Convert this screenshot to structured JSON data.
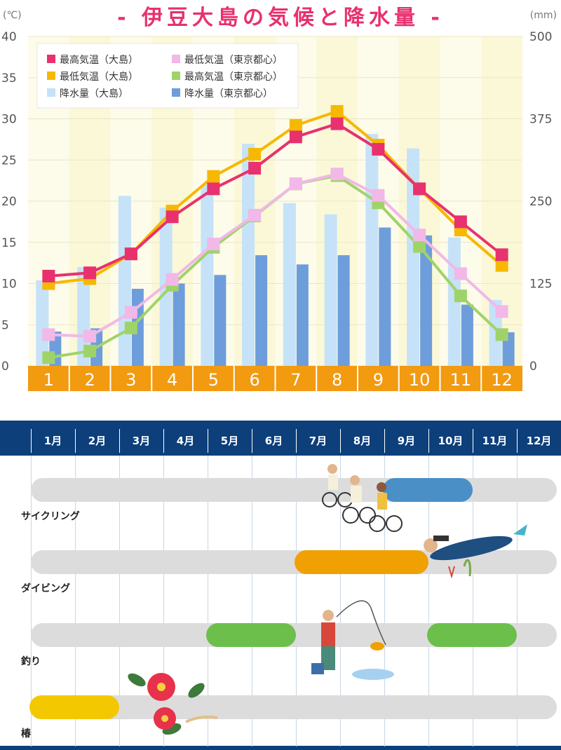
{
  "chart_data": {
    "type": "bar",
    "title": "- 伊豆大島の気候と降水量 -",
    "left_unit": "(℃)",
    "right_unit": "(mm)",
    "categories": [
      "1",
      "2",
      "3",
      "4",
      "5",
      "6",
      "7",
      "8",
      "9",
      "10",
      "11",
      "12"
    ],
    "left_axis": {
      "ticks": [
        "0",
        "5",
        "10",
        "15",
        "20",
        "25",
        "30",
        "35",
        "40"
      ],
      "range": [
        0,
        40
      ]
    },
    "right_axis": {
      "ticks": [
        "0",
        "125",
        "250",
        "375",
        "500"
      ],
      "range": [
        0,
        500
      ]
    },
    "bar_series": [
      {
        "name": "降水量（大島）",
        "color": "#c5e2f8",
        "values": [
          130,
          150,
          258,
          240,
          275,
          337,
          247,
          230,
          352,
          330,
          195,
          100
        ]
      },
      {
        "name": "降水量（東京都心）",
        "color": "#6e9ddc",
        "values": [
          52,
          57,
          117,
          125,
          138,
          168,
          154,
          168,
          210,
          198,
          93,
          51
        ]
      }
    ],
    "line_series": [
      {
        "name": "最高気温（大島）",
        "color": "#e8316e",
        "values": [
          10.9,
          11.3,
          13.6,
          18.1,
          21.5,
          24.0,
          27.8,
          29.4,
          26.3,
          21.5,
          17.5,
          13.5
        ]
      },
      {
        "name": "最低気温（大島）",
        "color": "#f6b800",
        "values": [
          10.0,
          10.6,
          13.6,
          18.8,
          23.0,
          25.7,
          29.2,
          30.9,
          26.8,
          21.5,
          16.5,
          12.2
        ]
      },
      {
        "name": "最低気温（東京都心）",
        "color": "#f1b8e8",
        "values": [
          3.8,
          3.6,
          6.5,
          10.5,
          14.8,
          18.3,
          22.1,
          23.3,
          20.7,
          15.9,
          11.2,
          6.6
        ]
      },
      {
        "name": "最高気温（東京都心）",
        "color": "#9fd36a",
        "values": [
          1.0,
          1.8,
          4.6,
          9.8,
          14.4,
          18.2,
          22.1,
          23.1,
          19.8,
          14.5,
          8.5,
          3.8
        ]
      }
    ],
    "legend_position": "top-left",
    "legend_order": [
      "最高気温（大島）",
      "最低気温（東京都心）",
      "最低気温（大島）",
      "最高気温（東京都心）",
      "降水量（大島）",
      "降水量（東京都心）"
    ]
  },
  "calendar": {
    "months": [
      "1月",
      "2月",
      "3月",
      "4月",
      "5月",
      "6月",
      "7月",
      "8月",
      "9月",
      "10月",
      "11月",
      "12月"
    ],
    "activities": [
      {
        "label": "サイクリング",
        "color": "#4a8fc6",
        "season_start": 9,
        "season_end": 10
      },
      {
        "label": "ダイビング",
        "color": "#f0a000",
        "season_start": 7,
        "season_end": 9
      },
      {
        "label": "釣り",
        "color": "#6cbf4a",
        "seasons": [
          [
            5,
            6
          ],
          [
            10,
            11
          ]
        ]
      },
      {
        "label": "椿",
        "color": "#f4c800",
        "season_start": 1,
        "season_end": 2
      }
    ]
  }
}
